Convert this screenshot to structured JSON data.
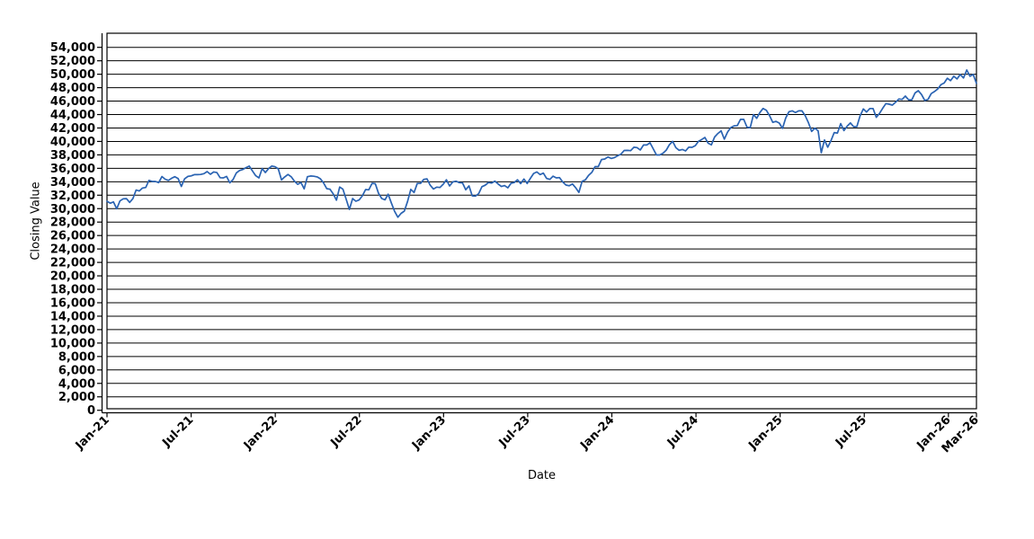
{
  "page": {
    "background": "#ffffff"
  },
  "chart_data": {
    "type": "line",
    "title": "",
    "xlabel": "Date",
    "ylabel": "Closing Value",
    "grid": "horizontal-only",
    "legend": "none",
    "line_color": "#2a63b2",
    "axis_color": "#000000",
    "ylim": [
      0,
      56000
    ],
    "y_tick_max": 54000,
    "y_tick_step": 2000,
    "y_tick_labels": [
      "54,000",
      "52,000",
      "50,000",
      "48,000",
      "46,000",
      "44,000",
      "42,000",
      "40,000",
      "38,000",
      "36,000",
      "34,000",
      "32,000",
      "30,000",
      "28,000",
      "26,000",
      "24,000",
      "22,000",
      "20,000",
      "18,000",
      "16,000",
      "14,000",
      "12,000",
      "10,000",
      "8,000",
      "6,000",
      "4,000",
      "2,000",
      "0"
    ],
    "x_range_months": [
      0,
      62
    ],
    "x_tick_labels": [
      "Jan-21",
      "Jul-21",
      "Jan-22",
      "Jul-22",
      "Jan-23",
      "Jul-23",
      "Jan-24",
      "Jul-24",
      "Jan-25",
      "Jul-25",
      "Jan-26",
      "Mar-26"
    ],
    "x_tick_month_offsets": [
      0,
      6,
      12,
      18,
      24,
      30,
      36,
      42,
      48,
      54,
      60,
      62
    ],
    "series": [
      {
        "name": "Closing Value",
        "start": "Jan-2021",
        "end": "Mar-2026",
        "interval": "weekly",
        "values": [
          31098,
          30814,
          30997,
          29983,
          31148,
          31458,
          31494,
          30932,
          31496,
          32779,
          32628,
          33073,
          33153,
          34201,
          34043,
          34044,
          33875,
          34778,
          34382,
          34208,
          34530,
          34756,
          34480,
          33290,
          34434,
          34787,
          34870,
          35062,
          35062,
          35085,
          35209,
          35515,
          35120,
          35456,
          35361,
          34608,
          34585,
          34798,
          33843,
          34326,
          35295,
          35677,
          35819,
          36100,
          36328,
          35602,
          34899,
          34580,
          35971,
          35366,
          35950,
          36338,
          36232,
          35912,
          34265,
          34725,
          35090,
          34738,
          34079,
          33614,
          33893,
          32944,
          34755,
          34861,
          34818,
          34721,
          34451,
          33811,
          32977,
          32899,
          32197,
          31262,
          33213,
          32900,
          31393,
          29889,
          31500,
          31097,
          31288,
          31899,
          32845,
          32803,
          33761,
          33707,
          32283,
          31510,
          31318,
          32152,
          30822,
          29590,
          28726,
          29297,
          29635,
          31083,
          32862,
          32403,
          33748,
          33746,
          34347,
          34430,
          33476,
          32920,
          33204,
          33147,
          33631,
          34302,
          33375,
          33978,
          34086,
          33869,
          33827,
          32817,
          33391,
          31910,
          31862,
          32238,
          33274,
          33485,
          33886,
          33809,
          34098,
          33675,
          33301,
          33427,
          33093,
          33763,
          33877,
          34299,
          33727,
          34408,
          33735,
          34509,
          35228,
          35459,
          35065,
          35281,
          34501,
          34347,
          34837,
          34577,
          34618,
          33964,
          33508,
          33408,
          33670,
          33127,
          32418,
          34061,
          34283,
          34947,
          35390,
          36245,
          36248,
          37305,
          37386,
          37690,
          37466,
          37593,
          37864,
          38109,
          38654,
          38671,
          38628,
          39132,
          39087,
          38722,
          39475,
          39476,
          39807,
          38904,
          37983,
          37986,
          38240,
          38676,
          39513,
          40004,
          39070,
          38686,
          38799,
          38589,
          39150,
          39119,
          39376,
          40001,
          40288,
          40589,
          39737,
          39498,
          40660,
          41175,
          41563,
          40345,
          41394,
          42063,
          42313,
          42353,
          43276,
          43276,
          42114,
          42052,
          43989,
          43445,
          44297,
          44911,
          44642,
          43828,
          42840,
          42992,
          42732,
          41938,
          43488,
          44424,
          44545,
          44303,
          44546,
          44546,
          43840,
          42802,
          41488,
          41985,
          41583,
          38315,
          40213,
          39142,
          40114,
          41317,
          41249,
          42655,
          41603,
          42270,
          42763,
          42198,
          42207,
          43819,
          44829,
          44372,
          44902,
          44902,
          43589,
          44175,
          44946,
          45632,
          45545,
          45401,
          45834,
          46315,
          46247,
          46758,
          46190,
          46191,
          47207,
          47563,
          46987,
          46100,
          46245,
          47112,
          47427,
          47800,
          48450,
          48700,
          49400,
          49040,
          49700,
          49300,
          49970,
          49440,
          50630,
          49700,
          49970,
          48640
        ]
      }
    ]
  }
}
